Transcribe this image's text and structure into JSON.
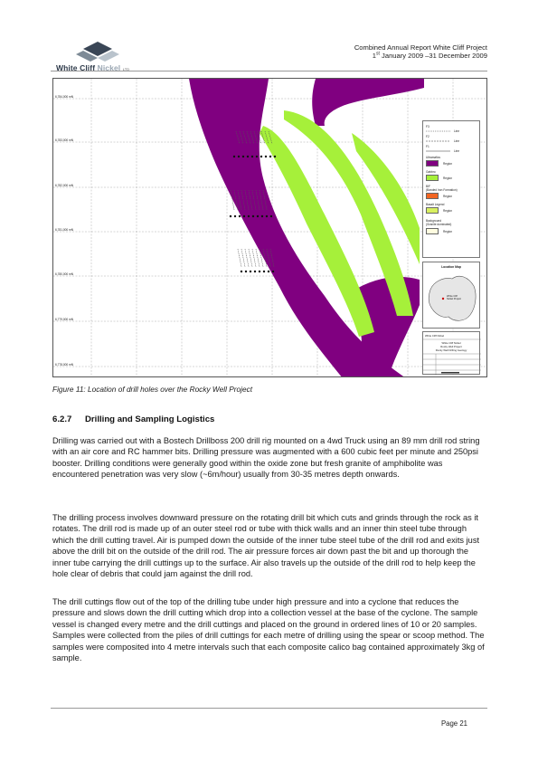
{
  "header": {
    "logo_text_main": "White Cliff",
    "logo_text_accent": "Nickel",
    "logo_text_suffix": "LTD",
    "report_title": "Combined Annual Report White Cliff Project",
    "period_day": "1",
    "period_day_suffix": "st",
    "period_rest": "January 2009 –31 December 2009"
  },
  "figure": {
    "northing_labels": [
      "6,784,000 mN",
      "6,783,000 mN",
      "6,782,000 mN",
      "6,781,000 mN",
      "6,780,000 mN",
      "6,779,000 mN",
      "6,778,000 mN"
    ],
    "legend": {
      "f3": "F3",
      "f2": "F2",
      "f1": "F1",
      "line": "Line",
      "ultramafics": "Ultramafics",
      "gabbro": "Gabbro",
      "bif": "BIF",
      "bif_sub": "(Banded Iron Formation)",
      "basalt": "Basalt Legend",
      "background": "Background",
      "background_sub": "(Granite dominated)",
      "region": "Region"
    },
    "location_map": {
      "title": "Location Map",
      "label1": "White Cliff",
      "label2": "Nickel Project"
    },
    "title_block": {
      "company": "White Cliff Nickel",
      "line1": "White Cliff Nickel",
      "line2": "Rocky Well Project",
      "line3": "Rocky Well Drilling Geology"
    },
    "caption": "Figure 11: Location of drill holes over the Rocky Well Project",
    "colors": {
      "ultramafic": "#800080",
      "gabbro": "#a6f03a",
      "grid": "#9a9a9a"
    }
  },
  "section": {
    "number": "6.2.7",
    "title": "Drilling and Sampling Logistics"
  },
  "paragraphs": [
    "Drilling was carried out with a Bostech Drillboss 200 drill rig mounted on a 4wd Truck using an 89 mm drill rod string with an air core and RC hammer bits. Drilling pressure was augmented with a 600 cubic feet per minute and 250psi booster. Drilling conditions were generally good within the oxide zone but fresh granite of amphibolite was encountered penetration was very slow (~6m/hour) usually from 30-35 metres depth onwards.",
    "The drilling process involves downward pressure on the rotating drill bit which cuts and grinds through the rock as it rotates. The drill rod is made up of an outer steel rod or tube with thick walls and an inner thin steel tube through which the drill cutting travel. Air is pumped down the outside of the inner tube steel tube of the drill rod and exits just above the drill bit on the outside of the drill rod. The air pressure forces air down past the bit and up thorough the inner tube carrying the drill cuttings up to the surface. Air also travels up the outside of the drill rod to help keep the hole clear of debris that could jam against the drill rod.",
    "The drill cuttings flow out of the top of the drilling tube under high pressure and into a cyclone that reduces the pressure and slows down the drill cutting which drop into a collection vessel at the base of the cyclone. The sample vessel is changed every metre and the drill cuttings and placed on the ground in ordered lines of 10 or 20 samples. Samples were collected from the piles of drill cuttings for each metre of drilling using the spear or scoop method. The samples were composited into 4 metre intervals such that each composite calico bag contained approximately 3kg of sample."
  ],
  "footer": {
    "page_label": "Page 21"
  }
}
